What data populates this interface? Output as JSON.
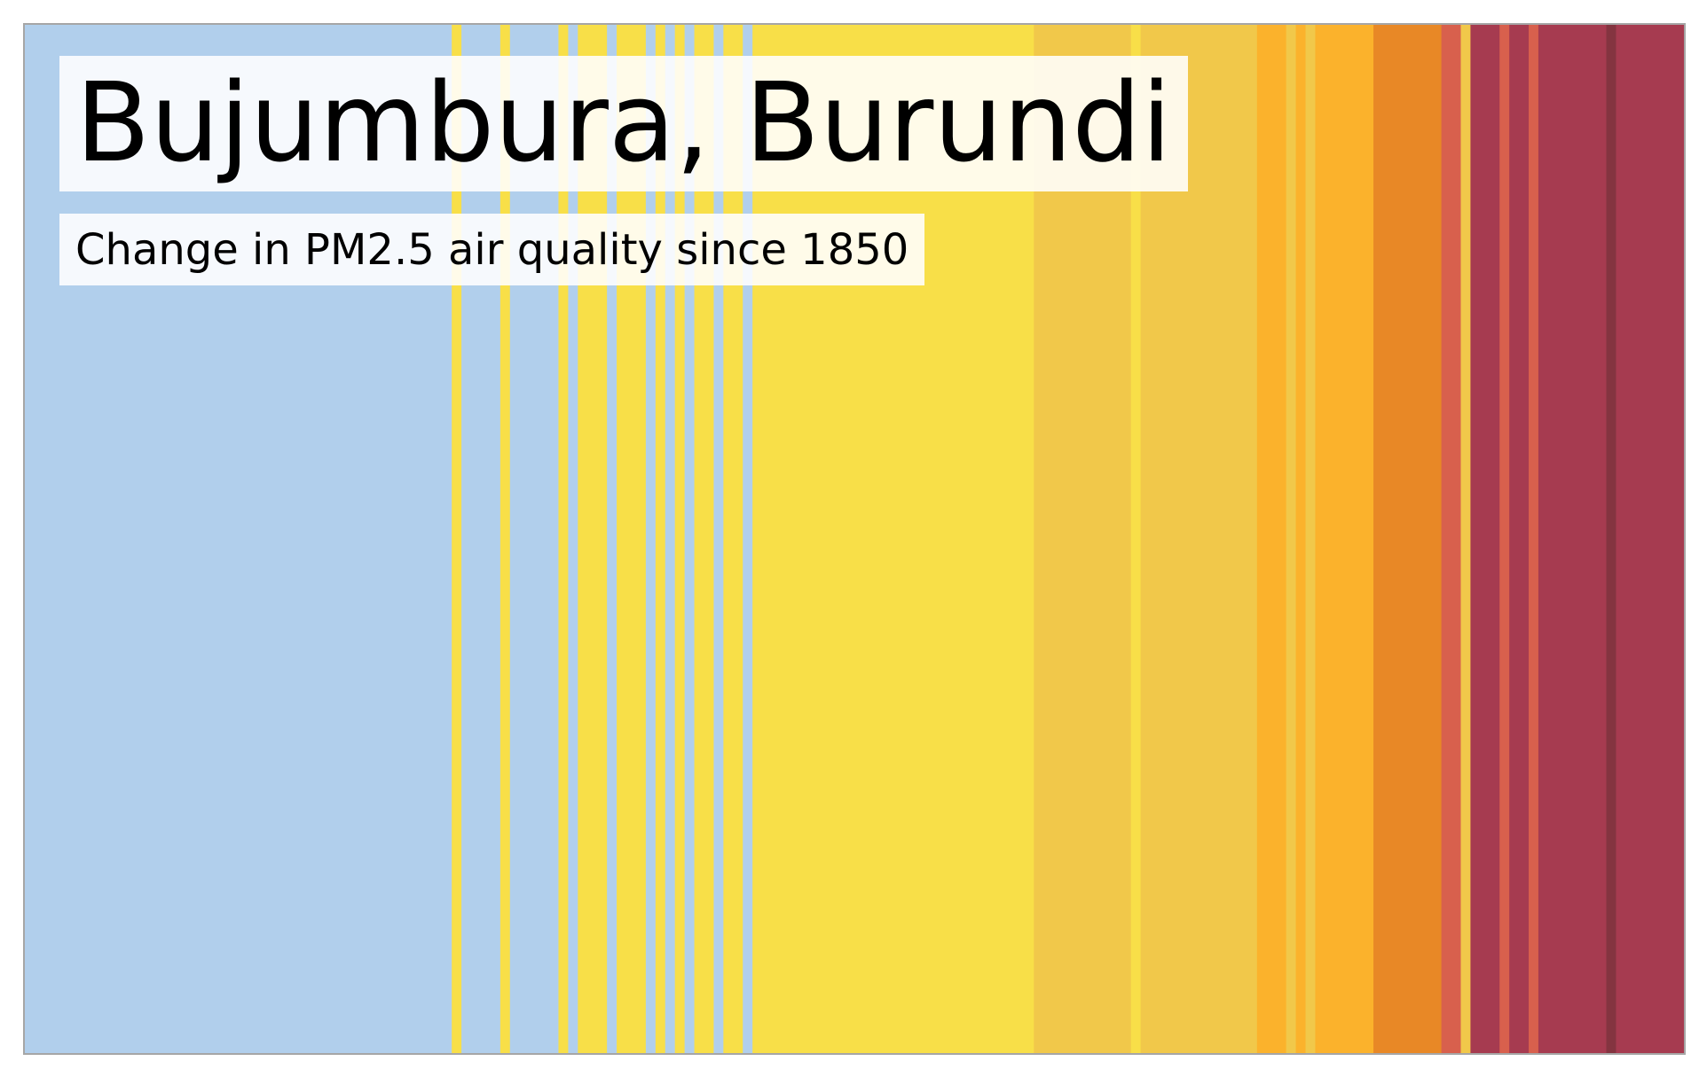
{
  "chart_data": {
    "type": "heatmap",
    "title": "Bujumbura, Burundi",
    "subtitle": "Change in PM2.5 air quality since 1850",
    "x_range": [
      1850,
      2021
    ],
    "legend": "none",
    "grid": false,
    "palette": {
      "light_blue": "#b1cfec",
      "yellow": "#f8df48",
      "gold": "#f1c84a",
      "amber": "#fbb22c",
      "orange": "#e88826",
      "coral": "#d8604d",
      "crimson": "#a63b50",
      "dark_crimson": "#843440"
    },
    "frame_color": "#a6a6a6",
    "stripes": [
      {
        "start": 1850,
        "end": 1894,
        "color": "#b1cfec"
      },
      {
        "start": 1894,
        "end": 1895,
        "color": "#f8df48"
      },
      {
        "start": 1895,
        "end": 1899,
        "color": "#b1cfec"
      },
      {
        "start": 1899,
        "end": 1900,
        "color": "#f8df48"
      },
      {
        "start": 1900,
        "end": 1905,
        "color": "#b1cfec"
      },
      {
        "start": 1905,
        "end": 1906,
        "color": "#f8df48"
      },
      {
        "start": 1906,
        "end": 1907,
        "color": "#b1cfec"
      },
      {
        "start": 1907,
        "end": 1910,
        "color": "#f8df48"
      },
      {
        "start": 1910,
        "end": 1911,
        "color": "#b1cfec"
      },
      {
        "start": 1911,
        "end": 1914,
        "color": "#f8df48"
      },
      {
        "start": 1914,
        "end": 1915,
        "color": "#b1cfec"
      },
      {
        "start": 1915,
        "end": 1916,
        "color": "#f8df48"
      },
      {
        "start": 1916,
        "end": 1917,
        "color": "#b1cfec"
      },
      {
        "start": 1917,
        "end": 1918,
        "color": "#f8df48"
      },
      {
        "start": 1918,
        "end": 1919,
        "color": "#b1cfec"
      },
      {
        "start": 1919,
        "end": 1921,
        "color": "#f8df48"
      },
      {
        "start": 1921,
        "end": 1922,
        "color": "#b1cfec"
      },
      {
        "start": 1922,
        "end": 1924,
        "color": "#f8df48"
      },
      {
        "start": 1924,
        "end": 1925,
        "color": "#b1cfec"
      },
      {
        "start": 1925,
        "end": 1954,
        "color": "#f8df48"
      },
      {
        "start": 1954,
        "end": 1964,
        "color": "#f1c84a"
      },
      {
        "start": 1964,
        "end": 1965,
        "color": "#f8df48"
      },
      {
        "start": 1965,
        "end": 1977,
        "color": "#f1c84a"
      },
      {
        "start": 1977,
        "end": 1980,
        "color": "#fbb22c"
      },
      {
        "start": 1980,
        "end": 1981,
        "color": "#f1c84a"
      },
      {
        "start": 1981,
        "end": 1982,
        "color": "#fbb22c"
      },
      {
        "start": 1982,
        "end": 1983,
        "color": "#f1c84a"
      },
      {
        "start": 1983,
        "end": 1989,
        "color": "#fbb22c"
      },
      {
        "start": 1989,
        "end": 1996,
        "color": "#e88826"
      },
      {
        "start": 1996,
        "end": 1998,
        "color": "#d8604d"
      },
      {
        "start": 1998,
        "end": 1999,
        "color": "#f1c84a"
      },
      {
        "start": 1999,
        "end": 2002,
        "color": "#a63b50"
      },
      {
        "start": 2002,
        "end": 2003,
        "color": "#d8604d"
      },
      {
        "start": 2003,
        "end": 2005,
        "color": "#a63b50"
      },
      {
        "start": 2005,
        "end": 2006,
        "color": "#d8604d"
      },
      {
        "start": 2006,
        "end": 2013,
        "color": "#a63b50"
      },
      {
        "start": 2013,
        "end": 2014,
        "color": "#843440"
      },
      {
        "start": 2014,
        "end": 2021,
        "color": "#a63b50"
      }
    ]
  }
}
